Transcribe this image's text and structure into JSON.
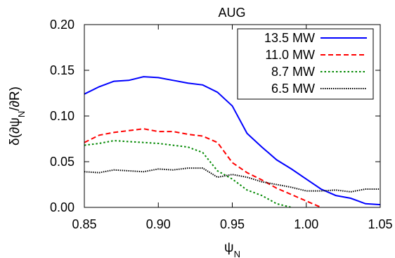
{
  "chart_data": {
    "type": "line",
    "title": "AUG",
    "xlabel": "ψ_N",
    "ylabel": "δ(∂ψ_N/∂R)",
    "xlim": [
      0.85,
      1.05
    ],
    "ylim": [
      0.0,
      0.2
    ],
    "xticks": [
      {
        "value": 0.85,
        "label": "0.85"
      },
      {
        "value": 0.9,
        "label": "0.90"
      },
      {
        "value": 0.95,
        "label": "0.95"
      },
      {
        "value": 1.0,
        "label": "1.00"
      },
      {
        "value": 1.05,
        "label": "1.05"
      }
    ],
    "yticks": [
      {
        "value": 0.0,
        "label": "0.00"
      },
      {
        "value": 0.05,
        "label": "0.05"
      },
      {
        "value": 0.1,
        "label": "0.10"
      },
      {
        "value": 0.15,
        "label": "0.15"
      },
      {
        "value": 0.2,
        "label": "0.20"
      }
    ],
    "grid": false,
    "legend": "top-right",
    "series": [
      {
        "name": "13.5 MW",
        "color": "#0000ff",
        "dash": "solid",
        "x": [
          0.85,
          0.86,
          0.87,
          0.88,
          0.89,
          0.9,
          0.91,
          0.92,
          0.93,
          0.94,
          0.95,
          0.96,
          0.97,
          0.98,
          0.99,
          1.0,
          1.01,
          1.02,
          1.03,
          1.04,
          1.05
        ],
        "y": [
          0.124,
          0.132,
          0.138,
          0.139,
          0.143,
          0.142,
          0.139,
          0.136,
          0.134,
          0.126,
          0.111,
          0.081,
          0.066,
          0.052,
          0.042,
          0.031,
          0.02,
          0.013,
          0.01,
          0.004,
          0.003
        ]
      },
      {
        "name": "11.0 MW",
        "color": "#ff0000",
        "dash": "dashed",
        "x": [
          0.85,
          0.86,
          0.87,
          0.88,
          0.89,
          0.9,
          0.91,
          0.92,
          0.93,
          0.94,
          0.95,
          0.96,
          0.97,
          0.98,
          0.99,
          1.0,
          1.01
        ],
        "y": [
          0.071,
          0.079,
          0.082,
          0.084,
          0.086,
          0.083,
          0.083,
          0.08,
          0.078,
          0.071,
          0.049,
          0.038,
          0.03,
          0.021,
          0.014,
          0.007,
          0.0
        ]
      },
      {
        "name": "8.7 MW",
        "color": "#008800",
        "dash": "dotted",
        "x": [
          0.85,
          0.86,
          0.87,
          0.88,
          0.89,
          0.9,
          0.91,
          0.92,
          0.93,
          0.94,
          0.95,
          0.96,
          0.97,
          0.98,
          0.99
        ],
        "y": [
          0.068,
          0.07,
          0.073,
          0.072,
          0.071,
          0.07,
          0.068,
          0.066,
          0.06,
          0.04,
          0.031,
          0.019,
          0.013,
          0.004,
          0.0
        ]
      },
      {
        "name": "6.5 MW",
        "color": "#000000",
        "dash": "dotted-fine",
        "x": [
          0.85,
          0.86,
          0.87,
          0.88,
          0.89,
          0.9,
          0.91,
          0.92,
          0.93,
          0.94,
          0.95,
          0.96,
          0.97,
          0.98,
          0.99,
          1.0,
          1.01,
          1.02,
          1.03,
          1.04,
          1.05
        ],
        "y": [
          0.039,
          0.038,
          0.041,
          0.04,
          0.039,
          0.042,
          0.041,
          0.043,
          0.043,
          0.033,
          0.036,
          0.033,
          0.028,
          0.025,
          0.022,
          0.018,
          0.018,
          0.019,
          0.017,
          0.02,
          0.02
        ]
      }
    ]
  }
}
